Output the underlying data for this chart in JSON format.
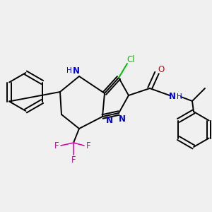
{
  "bg_color": "#f0f0f0",
  "bond_color": "#000000",
  "N_color": "#0000dd",
  "O_color": "#dd0000",
  "F_color": "#dd00aa",
  "Cl_color": "#00bb00",
  "lw": 1.4,
  "fs": 8.5,
  "xlim": [
    0,
    3.0
  ],
  "ylim": [
    0,
    3.0
  ]
}
